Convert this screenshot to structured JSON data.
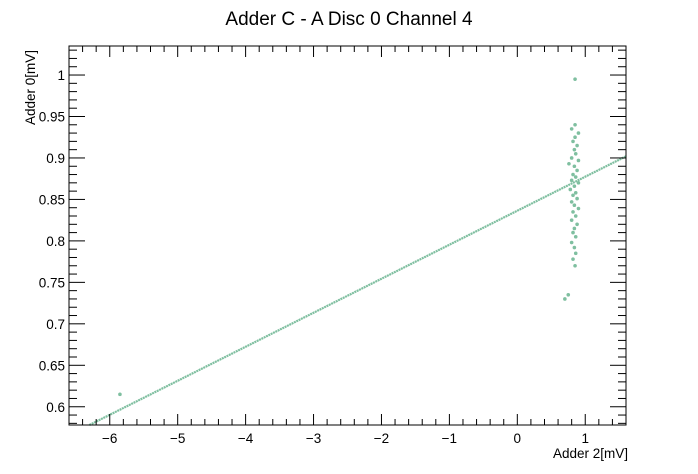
{
  "chart_data": {
    "type": "scatter",
    "title": "Adder C - A Disc 0 Channel 4",
    "xlabel": "Adder 2[mV]",
    "ylabel": "Adder 0[mV]",
    "xlim": [
      -6.6,
      1.6
    ],
    "ylim": [
      0.578,
      1.035
    ],
    "x_ticks": [
      -6,
      -5,
      -4,
      -3,
      -2,
      -1,
      0,
      1
    ],
    "x_tick_labels": [
      "−6",
      "−5",
      "−4",
      "−3",
      "−2",
      "−1",
      "0",
      "1"
    ],
    "y_ticks": [
      0.6,
      0.65,
      0.7,
      0.75,
      0.8,
      0.85,
      0.9,
      0.95,
      1.0
    ],
    "y_tick_labels": [
      "0.6",
      "0.65",
      "0.7",
      "0.75",
      "0.8",
      "0.85",
      "0.9",
      "0.95",
      "1"
    ],
    "grid": false,
    "marker_color": "#7fbfa0",
    "series": [
      {
        "trend_line": {
          "x": [
            -6.3,
            1.6
          ],
          "y": [
            0.578,
            0.902
          ]
        },
        "points": [
          {
            "x": -5.85,
            "y": 0.615
          },
          {
            "x": 0.85,
            "y": 0.995
          },
          {
            "x": 0.75,
            "y": 0.735
          },
          {
            "x": 0.7,
            "y": 0.73
          },
          {
            "x": 0.85,
            "y": 0.94
          },
          {
            "x": 0.8,
            "y": 0.935
          },
          {
            "x": 0.9,
            "y": 0.93
          },
          {
            "x": 0.85,
            "y": 0.925
          },
          {
            "x": 0.82,
            "y": 0.92
          },
          {
            "x": 0.88,
            "y": 0.915
          },
          {
            "x": 0.84,
            "y": 0.91
          },
          {
            "x": 0.86,
            "y": 0.905
          },
          {
            "x": 0.8,
            "y": 0.9
          },
          {
            "x": 0.9,
            "y": 0.897
          },
          {
            "x": 0.76,
            "y": 0.893
          },
          {
            "x": 0.84,
            "y": 0.89
          },
          {
            "x": 0.88,
            "y": 0.885
          },
          {
            "x": 0.82,
            "y": 0.88
          },
          {
            "x": 0.86,
            "y": 0.877
          },
          {
            "x": 0.8,
            "y": 0.873
          },
          {
            "x": 0.9,
            "y": 0.87
          },
          {
            "x": 0.84,
            "y": 0.866
          },
          {
            "x": 0.78,
            "y": 0.862
          },
          {
            "x": 0.86,
            "y": 0.858
          },
          {
            "x": 0.82,
            "y": 0.855
          },
          {
            "x": 0.88,
            "y": 0.851
          },
          {
            "x": 0.8,
            "y": 0.847
          },
          {
            "x": 0.84,
            "y": 0.843
          },
          {
            "x": 0.9,
            "y": 0.839
          },
          {
            "x": 0.82,
            "y": 0.835
          },
          {
            "x": 0.86,
            "y": 0.83
          },
          {
            "x": 0.8,
            "y": 0.825
          },
          {
            "x": 0.88,
            "y": 0.82
          },
          {
            "x": 0.84,
            "y": 0.815
          },
          {
            "x": 0.82,
            "y": 0.81
          },
          {
            "x": 0.86,
            "y": 0.805
          },
          {
            "x": 0.8,
            "y": 0.798
          },
          {
            "x": 0.84,
            "y": 0.792
          },
          {
            "x": 0.86,
            "y": 0.785
          },
          {
            "x": 0.82,
            "y": 0.778
          },
          {
            "x": 0.85,
            "y": 0.77
          }
        ]
      }
    ]
  }
}
